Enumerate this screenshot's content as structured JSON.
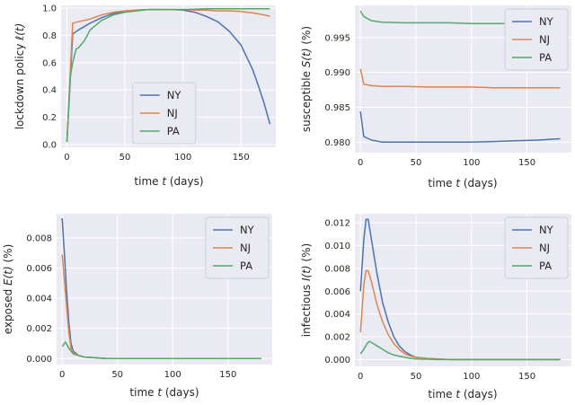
{
  "colors": {
    "NY": "#4c72b0",
    "NJ": "#dd8452",
    "PA": "#55a868",
    "background": "#eaeaf2",
    "grid": "#ffffff"
  },
  "chart_data": [
    {
      "id": "lockdown",
      "type": "line",
      "xlabel_pre": "time ",
      "xlabel_var": "t",
      "xlabel_post": " (days)",
      "ylabel_pre": "lockdown policy ",
      "ylabel_var": "ℓ(t)",
      "ylabel_post": "",
      "xlim": [
        -5,
        180
      ],
      "ylim": [
        -0.02,
        1.02
      ],
      "xticks": [
        0,
        50,
        100,
        150
      ],
      "xtick_labels": [
        "0",
        "50",
        "100",
        "150"
      ],
      "yticks": [
        0.0,
        0.2,
        0.4,
        0.6,
        0.8,
        1.0
      ],
      "ytick_labels": [
        "0.0",
        "0.2",
        "0.4",
        "0.6",
        "0.8",
        "1.0"
      ],
      "legend": "lower-center",
      "series": [
        {
          "name": "NY",
          "x": [
            0,
            5,
            10,
            20,
            30,
            40,
            50,
            60,
            70,
            80,
            90,
            100,
            110,
            120,
            130,
            140,
            150,
            160,
            165,
            170,
            175
          ],
          "y": [
            0.02,
            0.81,
            0.84,
            0.89,
            0.93,
            0.96,
            0.975,
            0.985,
            0.99,
            0.99,
            0.99,
            0.985,
            0.97,
            0.94,
            0.9,
            0.83,
            0.73,
            0.55,
            0.43,
            0.3,
            0.15
          ]
        },
        {
          "name": "NJ",
          "x": [
            0,
            5,
            10,
            20,
            30,
            40,
            50,
            60,
            70,
            80,
            90,
            100,
            110,
            120,
            130,
            140,
            150,
            160,
            170,
            175
          ],
          "y": [
            0.02,
            0.89,
            0.9,
            0.92,
            0.95,
            0.97,
            0.98,
            0.985,
            0.99,
            0.99,
            0.99,
            0.99,
            0.985,
            0.985,
            0.98,
            0.98,
            0.975,
            0.965,
            0.95,
            0.94
          ]
        },
        {
          "name": "PA",
          "x": [
            0,
            3,
            5,
            8,
            10,
            15,
            20,
            30,
            40,
            50,
            60,
            70,
            80,
            90,
            100,
            120,
            140,
            160,
            175
          ],
          "y": [
            0.02,
            0.5,
            0.6,
            0.7,
            0.71,
            0.76,
            0.84,
            0.91,
            0.95,
            0.97,
            0.98,
            0.99,
            0.99,
            0.99,
            0.99,
            0.995,
            0.995,
            0.995,
            0.995
          ]
        }
      ]
    },
    {
      "id": "susceptible",
      "type": "line",
      "xlabel_pre": "time ",
      "xlabel_var": "t",
      "xlabel_post": " (days)",
      "ylabel_pre": "susceptible ",
      "ylabel_var": "S(t)",
      "ylabel_post": " (%)",
      "xlim": [
        -5,
        190
      ],
      "ylim": [
        0.9785,
        0.9996
      ],
      "xticks": [
        0,
        50,
        100,
        150
      ],
      "xtick_labels": [
        "0",
        "50",
        "100",
        "150"
      ],
      "yticks": [
        0.98,
        0.985,
        0.99,
        0.995
      ],
      "ytick_labels": [
        "0.980",
        "0.985",
        "0.990",
        "0.995"
      ],
      "legend": "top-right",
      "series": [
        {
          "name": "NY",
          "x": [
            0,
            3,
            10,
            20,
            40,
            60,
            80,
            100,
            120,
            140,
            160,
            180
          ],
          "y": [
            0.9844,
            0.9808,
            0.9803,
            0.98,
            0.98,
            0.98,
            0.98,
            0.98,
            0.9801,
            0.9802,
            0.9803,
            0.9805
          ]
        },
        {
          "name": "NJ",
          "x": [
            0,
            3,
            10,
            20,
            40,
            60,
            80,
            100,
            120,
            140,
            160,
            180
          ],
          "y": [
            0.9905,
            0.9883,
            0.9881,
            0.988,
            0.988,
            0.9879,
            0.9879,
            0.9879,
            0.9878,
            0.9878,
            0.9878,
            0.9878
          ]
        },
        {
          "name": "PA",
          "x": [
            0,
            3,
            10,
            20,
            40,
            60,
            80,
            100,
            120,
            140,
            160,
            180
          ],
          "y": [
            0.9988,
            0.998,
            0.9974,
            0.9972,
            0.9971,
            0.9971,
            0.9971,
            0.997,
            0.997,
            0.997,
            0.997,
            0.997
          ]
        }
      ]
    },
    {
      "id": "exposed",
      "type": "line",
      "xlabel_pre": "time ",
      "xlabel_var": "t",
      "xlabel_post": " (days)",
      "ylabel_pre": "exposed ",
      "ylabel_var": "E(t)",
      "ylabel_post": " (%)",
      "xlim": [
        -5,
        190
      ],
      "ylim": [
        -0.0004,
        0.0096
      ],
      "xticks": [
        0,
        50,
        100,
        150
      ],
      "xtick_labels": [
        "0",
        "50",
        "100",
        "150"
      ],
      "yticks": [
        0.0,
        0.002,
        0.004,
        0.006,
        0.008
      ],
      "ytick_labels": [
        "0.000",
        "0.002",
        "0.004",
        "0.006",
        "0.008"
      ],
      "legend": "top-right",
      "series": [
        {
          "name": "NY",
          "x": [
            0,
            2,
            4,
            6,
            8,
            10,
            15,
            20,
            30,
            40,
            60,
            80,
            100,
            120,
            140,
            160,
            180
          ],
          "y": [
            0.0093,
            0.007,
            0.0045,
            0.0025,
            0.001,
            0.0005,
            0.0002,
            0.0001,
            5e-05,
            0.0,
            0.0,
            0.0,
            0.0,
            0.0,
            0.0,
            0.0,
            0.0
          ]
        },
        {
          "name": "NJ",
          "x": [
            0,
            2,
            4,
            6,
            8,
            10,
            15,
            20,
            30,
            40,
            60,
            80,
            100,
            120,
            140,
            160,
            180
          ],
          "y": [
            0.0069,
            0.0052,
            0.0035,
            0.0018,
            0.0007,
            0.0004,
            0.0002,
            0.0001,
            5e-05,
            0.0,
            0.0,
            0.0,
            0.0,
            0.0,
            0.0,
            0.0,
            0.0
          ]
        },
        {
          "name": "PA",
          "x": [
            0,
            3,
            6,
            10,
            15,
            20,
            30,
            40,
            60,
            80,
            100,
            120,
            140,
            160,
            180
          ],
          "y": [
            0.0008,
            0.0011,
            0.0007,
            0.0003,
            0.0002,
            0.0001,
            5e-05,
            0.0,
            0.0,
            0.0,
            0.0,
            0.0,
            0.0,
            0.0,
            0.0
          ]
        }
      ]
    },
    {
      "id": "infectious",
      "type": "line",
      "xlabel_pre": "time ",
      "xlabel_var": "t",
      "xlabel_post": " (days)",
      "ylabel_pre": "infectious ",
      "ylabel_var": "I(t)",
      "ylabel_post": " (%)",
      "xlim": [
        -5,
        190
      ],
      "ylim": [
        -0.0006,
        0.0128
      ],
      "xticks": [
        0,
        50,
        100,
        150
      ],
      "xtick_labels": [
        "0",
        "50",
        "100",
        "150"
      ],
      "yticks": [
        0.0,
        0.002,
        0.004,
        0.006,
        0.008,
        0.01,
        0.012
      ],
      "ytick_labels": [
        "0.000",
        "0.002",
        "0.004",
        "0.006",
        "0.008",
        "0.010",
        "0.012"
      ],
      "legend": "top-right",
      "series": [
        {
          "name": "NY",
          "x": [
            0,
            3,
            5,
            7,
            10,
            15,
            20,
            25,
            30,
            35,
            40,
            45,
            50,
            60,
            70,
            80,
            100,
            120,
            140,
            160,
            180
          ],
          "y": [
            0.006,
            0.0105,
            0.0123,
            0.0123,
            0.0105,
            0.0075,
            0.005,
            0.0033,
            0.002,
            0.0012,
            0.0007,
            0.0004,
            0.0002,
            0.0001,
            5e-05,
            0.0,
            0.0,
            0.0,
            0.0,
            0.0,
            0.0
          ]
        },
        {
          "name": "NJ",
          "x": [
            0,
            3,
            5,
            7,
            10,
            15,
            20,
            25,
            30,
            35,
            40,
            45,
            50,
            60,
            70,
            80,
            100,
            120,
            140,
            160,
            180
          ],
          "y": [
            0.0024,
            0.0065,
            0.0078,
            0.0078,
            0.0068,
            0.0048,
            0.0033,
            0.0022,
            0.0014,
            0.0009,
            0.0005,
            0.0003,
            0.0002,
            0.0001,
            5e-05,
            0.0,
            0.0,
            0.0,
            0.0,
            0.0,
            0.0
          ]
        },
        {
          "name": "PA",
          "x": [
            0,
            3,
            6,
            8,
            10,
            15,
            20,
            25,
            30,
            35,
            40,
            45,
            50,
            60,
            70,
            80,
            100,
            120,
            140,
            160,
            180
          ],
          "y": [
            0.0005,
            0.0009,
            0.0014,
            0.0016,
            0.0015,
            0.0012,
            0.0009,
            0.0006,
            0.0004,
            0.0003,
            0.0002,
            0.0001,
            5e-05,
            3e-05,
            0.0,
            0.0,
            0.0,
            0.0,
            0.0,
            0.0,
            0.0
          ]
        }
      ]
    }
  ]
}
